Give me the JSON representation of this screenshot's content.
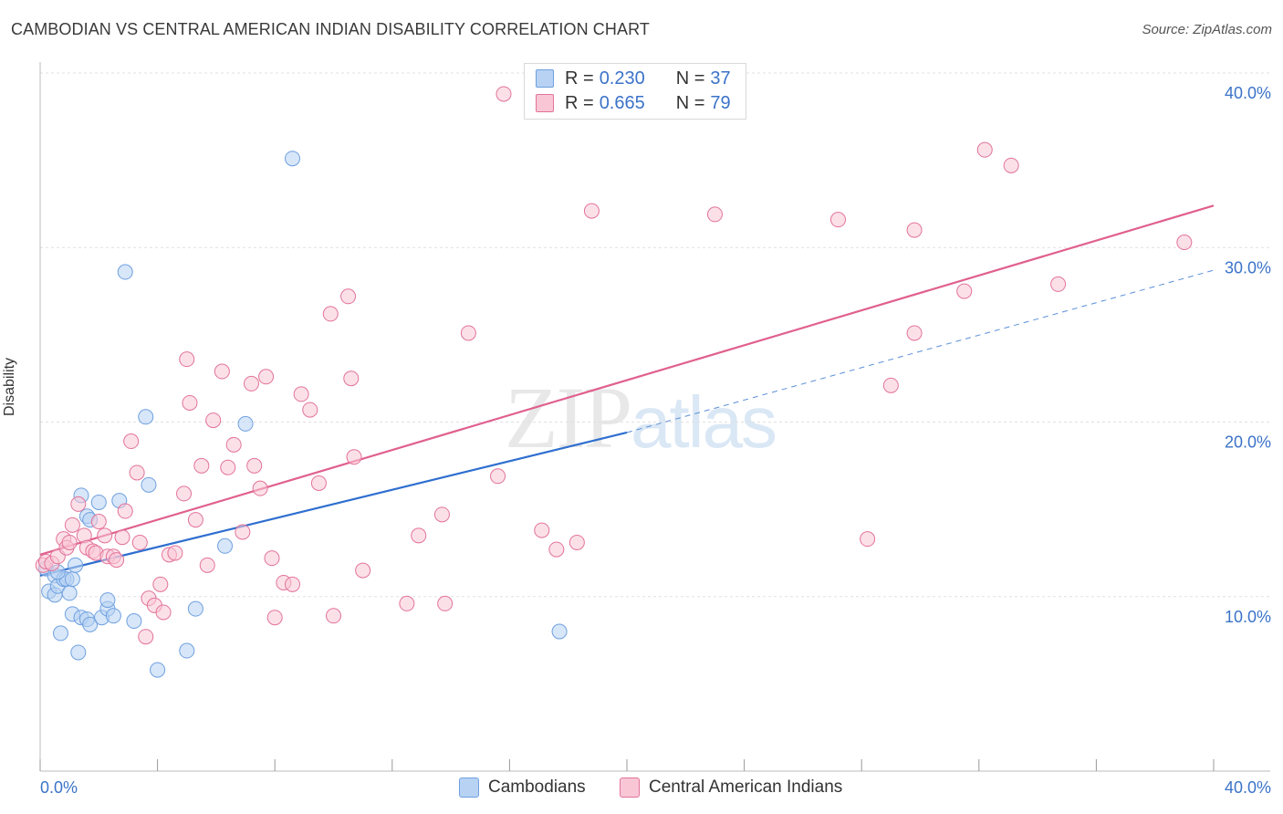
{
  "title": "CAMBODIAN VS CENTRAL AMERICAN INDIAN DISABILITY CORRELATION CHART",
  "source": "Source: ZipAtlas.com",
  "watermark": {
    "zip": "ZIP",
    "atlas": "atlas"
  },
  "legend_top": [
    {
      "r_label": "R = ",
      "r_value": "0.230",
      "n_label": "N = ",
      "n_value": "37",
      "color": "#a9c8f0"
    },
    {
      "r_label": "R = ",
      "r_value": "0.665",
      "n_label": "N = ",
      "n_value": "79",
      "color": "#f6b7cb"
    }
  ],
  "legend_bottom": [
    "Cambodians",
    "Central American Indians"
  ],
  "chart_data": {
    "type": "scatter",
    "title": "CAMBODIAN VS CENTRAL AMERICAN INDIAN DISABILITY CORRELATION CHART",
    "xlabel": "",
    "ylabel": "Disability",
    "xlim": [
      0,
      40
    ],
    "ylim": [
      0,
      40
    ],
    "x_tick_labels": [
      "0.0%",
      "40.0%"
    ],
    "y_ticks": [
      10,
      20,
      30,
      40
    ],
    "y_tick_labels": [
      "10.0%",
      "20.0%",
      "30.0%",
      "40.0%"
    ],
    "grid": true,
    "legend_placement": "top-center",
    "series": [
      {
        "name": "Cambodians",
        "color": "#6fa0e0",
        "fill": "#b7d2f3",
        "trend": {
          "x": [
            0,
            20
          ],
          "y": [
            11.2,
            19.4
          ],
          "extended_to": [
            40,
            28.7
          ]
        },
        "points": [
          [
            0.2,
            11.6
          ],
          [
            0.3,
            10.3
          ],
          [
            0.5,
            11.2
          ],
          [
            0.5,
            10.1
          ],
          [
            0.6,
            10.6
          ],
          [
            0.7,
            7.9
          ],
          [
            0.8,
            11.0
          ],
          [
            0.9,
            11.0
          ],
          [
            1.0,
            10.2
          ],
          [
            1.1,
            11.0
          ],
          [
            1.1,
            9.0
          ],
          [
            1.2,
            11.8
          ],
          [
            1.3,
            6.8
          ],
          [
            1.4,
            8.8
          ],
          [
            1.4,
            15.8
          ],
          [
            1.6,
            8.7
          ],
          [
            1.6,
            14.6
          ],
          [
            1.7,
            8.4
          ],
          [
            1.7,
            14.4
          ],
          [
            2.0,
            15.4
          ],
          [
            2.1,
            8.8
          ],
          [
            2.3,
            9.3
          ],
          [
            2.3,
            9.8
          ],
          [
            2.5,
            8.9
          ],
          [
            2.7,
            15.5
          ],
          [
            2.9,
            28.6
          ],
          [
            3.2,
            8.6
          ],
          [
            3.6,
            20.3
          ],
          [
            3.7,
            16.4
          ],
          [
            4.0,
            5.8
          ],
          [
            5.0,
            6.9
          ],
          [
            5.3,
            9.3
          ],
          [
            6.3,
            12.9
          ],
          [
            7.0,
            19.9
          ],
          [
            8.6,
            35.1
          ],
          [
            17.7,
            8.0
          ],
          [
            0.6,
            11.4
          ]
        ]
      },
      {
        "name": "Central American Indians",
        "color": "#e2739a",
        "fill": "#f9c6d6",
        "trend": {
          "x": [
            0,
            40
          ],
          "y": [
            12.4,
            32.4
          ]
        },
        "points": [
          [
            0.1,
            11.8
          ],
          [
            0.2,
            12.0
          ],
          [
            0.4,
            11.9
          ],
          [
            0.6,
            12.3
          ],
          [
            0.8,
            13.3
          ],
          [
            0.9,
            12.8
          ],
          [
            1.0,
            13.1
          ],
          [
            1.1,
            14.1
          ],
          [
            1.3,
            15.3
          ],
          [
            1.5,
            13.5
          ],
          [
            1.6,
            12.8
          ],
          [
            1.8,
            12.6
          ],
          [
            1.9,
            12.5
          ],
          [
            2.0,
            14.3
          ],
          [
            2.2,
            13.5
          ],
          [
            2.3,
            12.3
          ],
          [
            2.5,
            12.3
          ],
          [
            2.6,
            12.1
          ],
          [
            2.8,
            13.4
          ],
          [
            2.9,
            14.9
          ],
          [
            3.1,
            18.9
          ],
          [
            3.3,
            17.1
          ],
          [
            3.4,
            13.1
          ],
          [
            3.6,
            7.7
          ],
          [
            3.7,
            9.9
          ],
          [
            3.9,
            9.5
          ],
          [
            4.1,
            10.7
          ],
          [
            4.2,
            9.1
          ],
          [
            4.4,
            12.4
          ],
          [
            4.6,
            12.5
          ],
          [
            4.9,
            15.9
          ],
          [
            5.0,
            23.6
          ],
          [
            5.1,
            21.1
          ],
          [
            5.3,
            14.4
          ],
          [
            5.5,
            17.5
          ],
          [
            5.7,
            11.8
          ],
          [
            5.9,
            20.1
          ],
          [
            6.2,
            22.9
          ],
          [
            6.4,
            17.4
          ],
          [
            6.6,
            18.7
          ],
          [
            6.9,
            13.7
          ],
          [
            7.2,
            22.2
          ],
          [
            7.3,
            17.5
          ],
          [
            7.5,
            16.2
          ],
          [
            7.7,
            22.6
          ],
          [
            7.9,
            12.2
          ],
          [
            8.0,
            8.8
          ],
          [
            8.3,
            10.8
          ],
          [
            8.6,
            10.7
          ],
          [
            8.9,
            21.6
          ],
          [
            9.2,
            20.7
          ],
          [
            9.5,
            16.5
          ],
          [
            9.9,
            26.2
          ],
          [
            10.0,
            8.9
          ],
          [
            10.5,
            27.2
          ],
          [
            10.6,
            22.5
          ],
          [
            10.7,
            18.0
          ],
          [
            11.0,
            11.5
          ],
          [
            12.5,
            9.6
          ],
          [
            12.9,
            13.5
          ],
          [
            13.7,
            14.7
          ],
          [
            13.8,
            9.6
          ],
          [
            14.6,
            25.1
          ],
          [
            15.6,
            16.9
          ],
          [
            15.8,
            38.8
          ],
          [
            17.1,
            13.8
          ],
          [
            17.6,
            12.7
          ],
          [
            18.3,
            13.1
          ],
          [
            18.8,
            32.1
          ],
          [
            23.0,
            31.9
          ],
          [
            27.2,
            31.6
          ],
          [
            28.2,
            13.3
          ],
          [
            29.0,
            22.1
          ],
          [
            29.8,
            25.1
          ],
          [
            29.8,
            31.0
          ],
          [
            31.5,
            27.5
          ],
          [
            32.2,
            35.6
          ],
          [
            33.1,
            34.7
          ],
          [
            34.7,
            27.9
          ],
          [
            39.0,
            30.3
          ]
        ]
      }
    ]
  }
}
